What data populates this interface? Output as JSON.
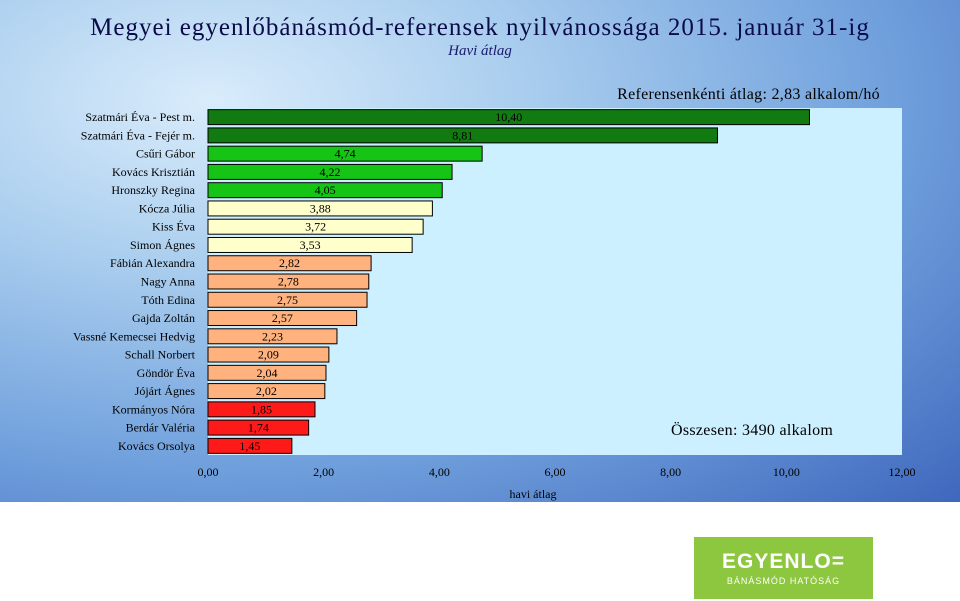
{
  "logo": {
    "main": "EGYENLO=",
    "sub": "BÁNÁSMÓD HATÓSÁG"
  },
  "chart_data": {
    "type": "bar",
    "orientation": "horizontal",
    "title": "Megyei egyenlőbánásmód-referensek nyilvánossága 2015. január 31-ig",
    "subtitle": "Havi átlag",
    "xlabel": "havi átlag",
    "xlim": [
      0,
      12
    ],
    "xticks": [
      "0,00",
      "2,00",
      "4,00",
      "6,00",
      "8,00",
      "10,00",
      "12,00"
    ],
    "annotations": {
      "average": "Referensenkénti átlag: 2,83 alkalom/hó",
      "total": "Összesen: 3490 alkalom"
    },
    "categories": [
      "Szatmári Éva - Pest m.",
      "Szatmári Éva - Fejér m.",
      "Csűri Gábor",
      "Kovács Krisztián",
      "Hronszky Regina",
      "Kócza Júlia",
      "Kiss Éva",
      "Simon Ágnes",
      "Fábián Alexandra",
      "Nagy Anna",
      "Tóth Edina",
      "Gajda Zoltán",
      "Vassné Kemecsei Hedvig",
      "Schall Norbert",
      "Göndör Éva",
      "Jójárt Ágnes",
      "Kormányos Nóra",
      "Berdár Valéria",
      "Kovács Orsolya"
    ],
    "values": [
      10.4,
      8.81,
      4.74,
      4.22,
      4.05,
      3.88,
      3.72,
      3.53,
      2.82,
      2.78,
      2.75,
      2.57,
      2.23,
      2.09,
      2.04,
      2.02,
      1.85,
      1.74,
      1.45
    ],
    "value_labels": [
      "10,40",
      "8,81",
      "4,74",
      "4,22",
      "4,05",
      "3,88",
      "3,72",
      "3,53",
      "2,82",
      "2,78",
      "2,75",
      "2,57",
      "2,23",
      "2,09",
      "2,04",
      "2,02",
      "1,85",
      "1,74",
      "1,45"
    ],
    "colors": [
      "#117a11",
      "#117a11",
      "#16c416",
      "#16c416",
      "#16c416",
      "#ffffcc",
      "#ffffcc",
      "#ffffcc",
      "#ffb27d",
      "#ffb27d",
      "#ffb27d",
      "#ffb27d",
      "#ffb27d",
      "#ffb27d",
      "#ffb27d",
      "#ffb27d",
      "#ff1a1a",
      "#ff1a1a",
      "#ff1a1a"
    ],
    "plot_background": "#ccf0ff"
  }
}
